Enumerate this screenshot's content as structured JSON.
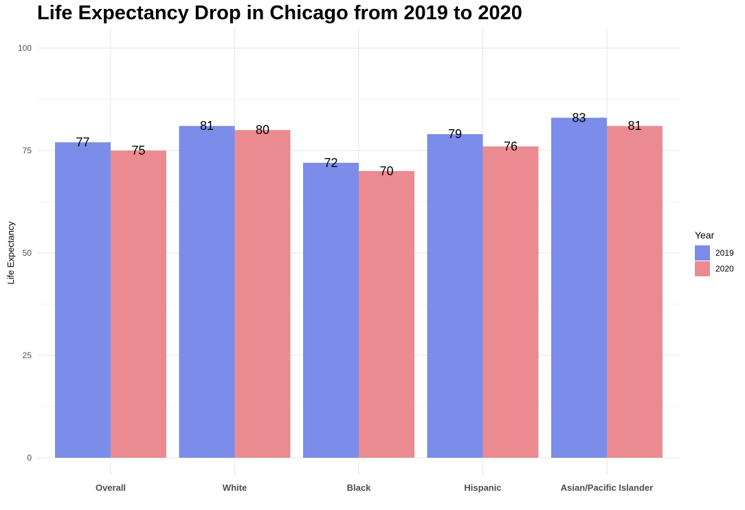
{
  "chart_data": {
    "type": "bar",
    "title": "Life Expectancy Drop in Chicago from 2019 to 2020",
    "xlabel": "",
    "ylabel": "Life Expectancy",
    "ylim": [
      0,
      105
    ],
    "yticks": [
      0,
      25,
      50,
      75,
      100
    ],
    "grid": true,
    "categories": [
      "Overall",
      "White",
      "Black",
      "Hispanic",
      "Asian/Pacific Islander"
    ],
    "series": [
      {
        "name": "2019",
        "color": "#7b8ce9",
        "values": [
          77,
          81,
          72,
          79,
          83
        ]
      },
      {
        "name": "2020",
        "color": "#eb8b90",
        "values": [
          75,
          80,
          70,
          76,
          81
        ]
      }
    ],
    "legend": {
      "title": "Year",
      "placement": "right"
    }
  }
}
